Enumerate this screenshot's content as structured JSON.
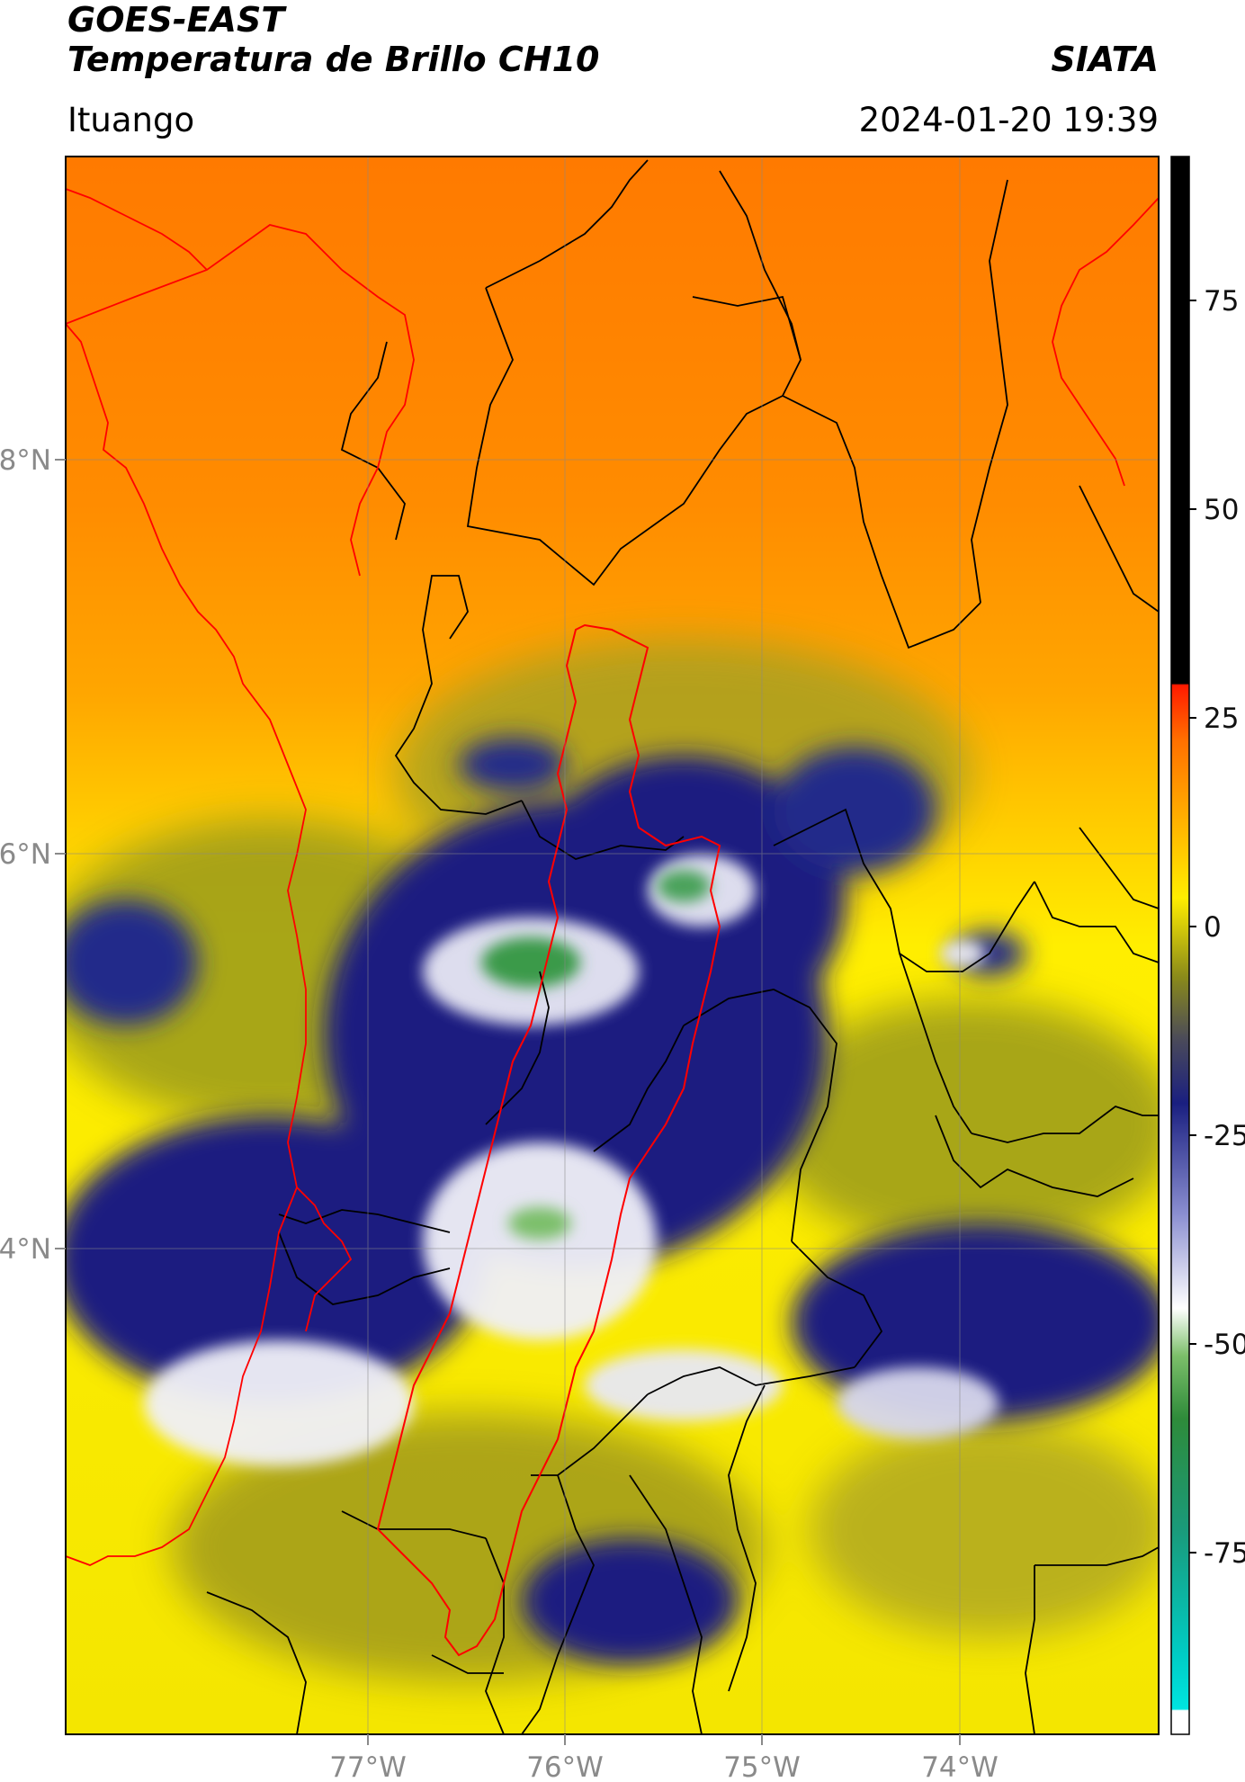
{
  "header": {
    "satellite": "GOES-EAST",
    "product": "Temperatura de Brillo CH10",
    "brand": "SIATA",
    "location": "Ituango",
    "datetime": "2024-01-20 19:39"
  },
  "map": {
    "lon_range": [
      -78.5,
      -73
    ],
    "lat_range": [
      2.0,
      9.5
    ],
    "lon_ticks": [
      "77°W",
      "76°W",
      "75°W",
      "74°W"
    ],
    "lat_ticks": [
      "8°N",
      "6°N",
      "4°N"
    ],
    "grid": true,
    "boundary_colors": {
      "department": "#000000",
      "antioquia_outline": "#ff0000",
      "coastline": "#ff0000"
    }
  },
  "colorbar": {
    "range": [
      -95,
      90
    ],
    "ticks": [
      "75",
      "50",
      "25",
      "0",
      "-25",
      "-50",
      "-75"
    ],
    "colors": {
      "top": "#000000",
      "warm": "#ff1a00",
      "orange": "#ff9a00",
      "yellow": "#ffee00",
      "olive": "#8a8a1a",
      "navy": "#1a1f80",
      "white": "#ffffff",
      "green": "#2e8b3a",
      "cyan": "#00e5e0"
    }
  }
}
